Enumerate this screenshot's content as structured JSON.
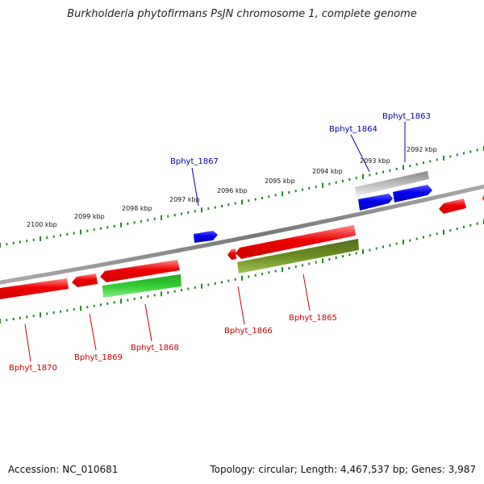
{
  "title": "Burkholderia phytofirmans PsJN chromosome 1, complete genome",
  "footer": {
    "accession": "Accession: NC_010681",
    "summary": "Topology: circular; Length: 4,467,537 bp; Genes: 3,987"
  },
  "colors": {
    "forward_gene": "#ee0000",
    "reverse_gene": "#0000dd",
    "rna_gene": "#33cc33",
    "olive_gene": "#6b8e23",
    "pseudo_gene": "#bbbbbb",
    "tick": "#228822",
    "backbone": "#888888"
  },
  "kbp_labels": [
    "2100 kbp",
    "2099 kbp",
    "2098 kbp",
    "2097 kbp",
    "2096 kbp",
    "2095 kbp",
    "2094 kbp",
    "2093 kbp",
    "2092 kbp"
  ],
  "genes": [
    {
      "id": "Bphyt_1870",
      "label": "Bphyt_1870",
      "strand": "minus",
      "color": "red"
    },
    {
      "id": "Bphyt_1869",
      "label": "Bphyt_1869",
      "strand": "minus",
      "color": "red"
    },
    {
      "id": "Bphyt_1868",
      "label": "Bphyt_1868",
      "strand": "minus",
      "color": "red"
    },
    {
      "id": "Bphyt_1867",
      "label": "Bphyt_1867",
      "strand": "plus",
      "color": "blue"
    },
    {
      "id": "Bphyt_1866",
      "label": "Bphyt_1866",
      "strand": "minus",
      "color": "red"
    },
    {
      "id": "Bphyt_1865",
      "label": "Bphyt_1865",
      "strand": "minus",
      "color": "red"
    },
    {
      "id": "Bphyt_1864",
      "label": "Bphyt_1864",
      "strand": "plus",
      "color": "blue"
    },
    {
      "id": "Bphyt_1863",
      "label": "Bphyt_1863",
      "strand": "plus",
      "color": "blue"
    }
  ]
}
